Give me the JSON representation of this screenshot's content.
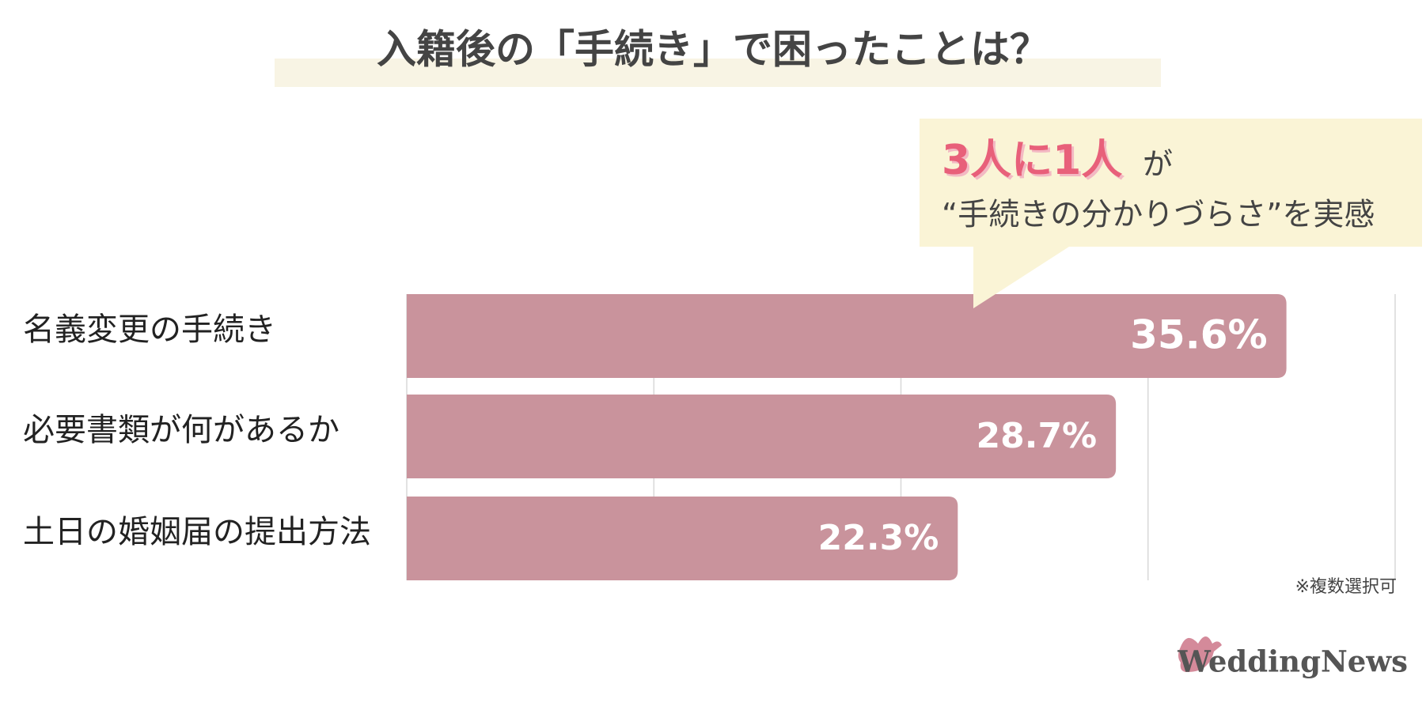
{
  "chart_data": {
    "type": "bar",
    "orientation": "horizontal",
    "title": "入籍後の「手続き」で困ったことは？",
    "categories": [
      "名義変更の手続き",
      "必要書類が何があるか",
      "土日の婚姻届の提出方法"
    ],
    "values": [
      35.6,
      28.7,
      22.3
    ],
    "value_labels": [
      "35.6%",
      "28.7%",
      "22.3%"
    ],
    "color": "#c9939c",
    "xlim": [
      0,
      40
    ],
    "xticks": [
      0,
      10,
      20,
      30,
      40
    ],
    "grid": true,
    "callout": {
      "highlight": "3人に1人",
      "text": "が",
      "subtext": "“手続きの分かりづらさ”を実感"
    },
    "note": "※複数選択可",
    "logo": "WeddingNews"
  }
}
